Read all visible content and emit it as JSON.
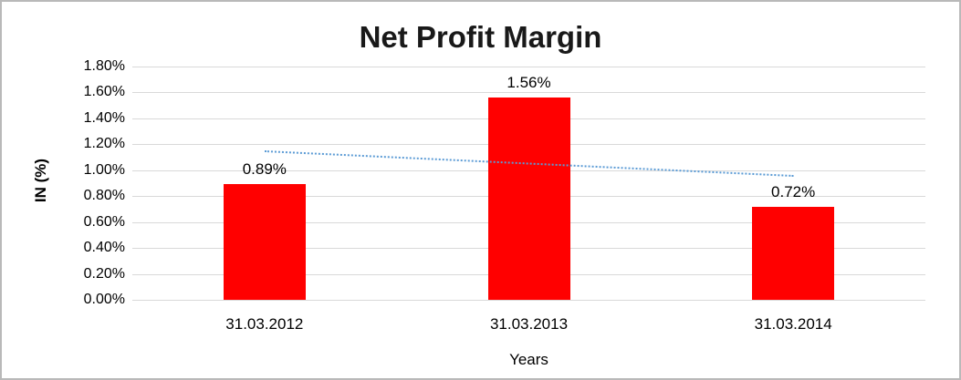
{
  "chart": {
    "title": "Net Profit Margin",
    "y_axis_title": "IN (%)",
    "x_axis_title": "Years",
    "colors": {
      "bar": "#ff0000",
      "trendline": "#5b9bd5",
      "gridline": "#d9d9d9",
      "text": "#000000",
      "frame_border": "#b9b9b9",
      "background": "#ffffff"
    }
  },
  "chart_data": {
    "type": "bar",
    "title": "Net Profit Margin",
    "xlabel": "Years",
    "ylabel": "IN (%)",
    "categories": [
      "31.03.2012",
      "31.03.2013",
      "31.03.2014"
    ],
    "values": [
      0.89,
      1.56,
      0.72
    ],
    "data_labels": [
      "0.89%",
      "1.56%",
      "0.72%"
    ],
    "y_ticks": [
      "1.80%",
      "1.60%",
      "1.40%",
      "1.20%",
      "1.00%",
      "0.80%",
      "0.60%",
      "0.40%",
      "0.20%",
      "0.00%"
    ],
    "ylim": [
      0,
      1.8
    ],
    "grid": true,
    "legend": false,
    "bar_color": "#ff0000",
    "trendline": {
      "type": "linear",
      "style": "dotted",
      "color": "#5b9bd5",
      "start_value": 1.15,
      "end_value": 0.96
    }
  }
}
